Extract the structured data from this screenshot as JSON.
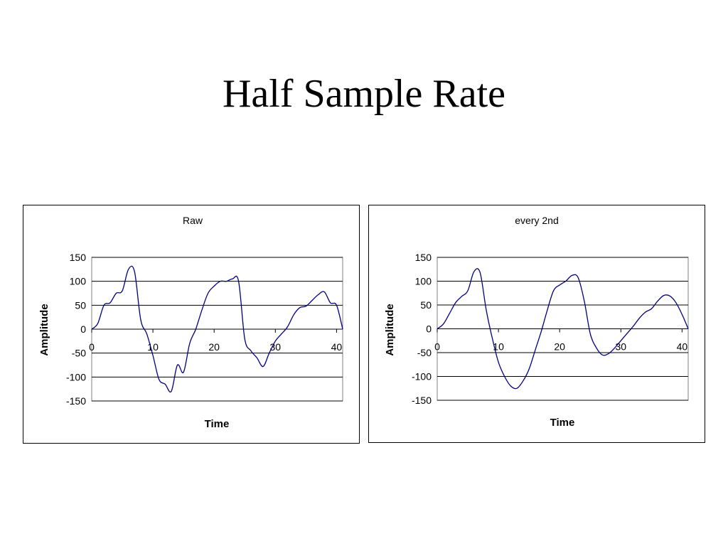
{
  "slide": {
    "title": "Half Sample Rate"
  },
  "chart_data": [
    {
      "type": "line",
      "title": "Raw",
      "xlabel": "Time",
      "ylabel": "Amplitude",
      "xlim": [
        0,
        41
      ],
      "ylim": [
        -150,
        150
      ],
      "xticks": [
        0,
        10,
        20,
        30,
        40
      ],
      "yticks": [
        150,
        100,
        50,
        0,
        -50,
        -100,
        -150
      ],
      "grid": "horizontal",
      "line_color": "#000080",
      "series": [
        {
          "x": [
            0,
            1,
            2,
            3,
            4,
            5,
            6,
            7,
            8,
            9,
            10,
            11,
            12,
            13,
            14,
            15,
            16,
            17,
            18,
            19,
            20,
            21,
            22,
            23,
            24,
            25,
            26,
            27,
            28,
            29,
            30,
            31,
            32,
            33,
            34,
            35,
            36,
            37,
            38,
            39,
            40,
            41
          ],
          "values": [
            0,
            12,
            50,
            55,
            75,
            80,
            125,
            120,
            20,
            -10,
            -55,
            -105,
            -115,
            -130,
            -75,
            -90,
            -30,
            0,
            40,
            75,
            90,
            100,
            100,
            105,
            100,
            -20,
            -45,
            -60,
            -78,
            -50,
            -25,
            -10,
            5,
            30,
            45,
            48,
            60,
            72,
            78,
            55,
            50,
            0
          ]
        }
      ]
    },
    {
      "type": "line",
      "title": "every 2nd",
      "xlabel": "Time",
      "ylabel": "Amplitude",
      "xlim": [
        0,
        41
      ],
      "ylim": [
        -150,
        150
      ],
      "xticks": [
        0,
        10,
        20,
        30,
        40
      ],
      "yticks": [
        150,
        100,
        50,
        0,
        -50,
        -100,
        -150
      ],
      "grid": "horizontal",
      "line_color": "#000080",
      "series": [
        {
          "x": [
            0,
            1,
            2,
            3,
            4,
            5,
            6,
            7,
            8,
            9,
            10,
            11,
            12,
            13,
            14,
            15,
            16,
            17,
            18,
            19,
            20,
            21,
            22,
            23,
            24,
            25,
            26,
            27,
            28,
            29,
            30,
            31,
            32,
            33,
            34,
            35,
            36,
            37,
            38,
            39,
            40,
            41
          ],
          "values": [
            0,
            10,
            32,
            55,
            68,
            80,
            120,
            118,
            40,
            -20,
            -70,
            -100,
            -120,
            -125,
            -110,
            -85,
            -45,
            -5,
            40,
            80,
            92,
            100,
            112,
            108,
            60,
            -10,
            -40,
            -55,
            -52,
            -40,
            -25,
            -10,
            5,
            22,
            35,
            42,
            58,
            70,
            69,
            55,
            30,
            0
          ]
        }
      ]
    }
  ]
}
